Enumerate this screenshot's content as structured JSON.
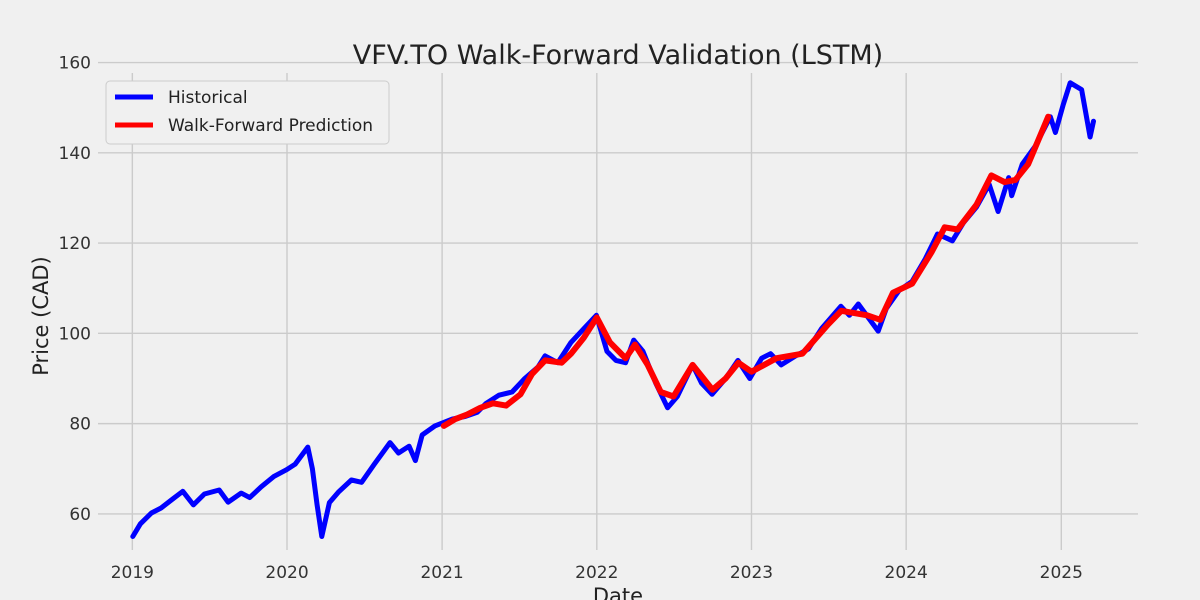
{
  "chart_data": {
    "type": "line",
    "title": "VFV.TO Walk-Forward Validation (LSTM)",
    "xlabel": "Date",
    "ylabel": "Price (CAD)",
    "xlim": [
      "2018-10-12",
      "2025-07-01"
    ],
    "ylim": [
      52,
      161
    ],
    "x_ticks": [
      "2019",
      "2020",
      "2021",
      "2022",
      "2023",
      "2024",
      "2025"
    ],
    "y_ticks": [
      60,
      80,
      100,
      120,
      140,
      160
    ],
    "grid": true,
    "legend_position": "top-left",
    "series": [
      {
        "name": "Historical",
        "color": "#0000ff",
        "points": [
          [
            "2019-01-02",
            55.0
          ],
          [
            "2019-01-20",
            57.8
          ],
          [
            "2019-02-15",
            60.2
          ],
          [
            "2019-03-10",
            61.3
          ],
          [
            "2019-04-05",
            63.2
          ],
          [
            "2019-04-30",
            65.0
          ],
          [
            "2019-05-25",
            62.0
          ],
          [
            "2019-06-20",
            64.4
          ],
          [
            "2019-07-25",
            65.3
          ],
          [
            "2019-08-15",
            62.6
          ],
          [
            "2019-09-15",
            64.6
          ],
          [
            "2019-10-05",
            63.6
          ],
          [
            "2019-11-01",
            66.0
          ],
          [
            "2019-12-01",
            68.3
          ],
          [
            "2019-12-31",
            69.8
          ],
          [
            "2020-01-20",
            71.0
          ],
          [
            "2020-02-19",
            74.8
          ],
          [
            "2020-03-01",
            70.0
          ],
          [
            "2020-03-12",
            62.0
          ],
          [
            "2020-03-23",
            55.0
          ],
          [
            "2020-04-10",
            62.5
          ],
          [
            "2020-05-01",
            64.8
          ],
          [
            "2020-06-01",
            67.5
          ],
          [
            "2020-06-25",
            67.0
          ],
          [
            "2020-07-25",
            71.0
          ],
          [
            "2020-08-31",
            75.8
          ],
          [
            "2020-09-20",
            73.5
          ],
          [
            "2020-10-15",
            75.0
          ],
          [
            "2020-10-30",
            71.8
          ],
          [
            "2020-11-15",
            77.5
          ],
          [
            "2020-12-15",
            79.5
          ],
          [
            "2021-01-25",
            81.0
          ],
          [
            "2021-02-25",
            81.6
          ],
          [
            "2021-03-25",
            82.5
          ],
          [
            "2021-04-15",
            84.5
          ],
          [
            "2021-05-15",
            86.3
          ],
          [
            "2021-06-15",
            87.0
          ],
          [
            "2021-07-15",
            90.0
          ],
          [
            "2021-08-15",
            92.5
          ],
          [
            "2021-09-01",
            95.0
          ],
          [
            "2021-10-01",
            93.5
          ],
          [
            "2021-11-01",
            98.0
          ],
          [
            "2021-12-01",
            101.0
          ],
          [
            "2021-12-31",
            104.0
          ],
          [
            "2022-01-25",
            96.0
          ],
          [
            "2022-02-15",
            94.0
          ],
          [
            "2022-03-10",
            93.5
          ],
          [
            "2022-03-29",
            98.5
          ],
          [
            "2022-04-20",
            96.0
          ],
          [
            "2022-05-20",
            89.0
          ],
          [
            "2022-06-17",
            83.5
          ],
          [
            "2022-07-10",
            86.0
          ],
          [
            "2022-08-15",
            93.0
          ],
          [
            "2022-09-05",
            89.0
          ],
          [
            "2022-09-30",
            86.5
          ],
          [
            "2022-11-01",
            90.0
          ],
          [
            "2022-11-30",
            94.0
          ],
          [
            "2022-12-28",
            90.0
          ],
          [
            "2023-01-25",
            94.5
          ],
          [
            "2023-02-15",
            95.5
          ],
          [
            "2023-03-12",
            93.0
          ],
          [
            "2023-04-15",
            95.0
          ],
          [
            "2023-05-15",
            96.5
          ],
          [
            "2023-06-15",
            101.0
          ],
          [
            "2023-07-31",
            106.0
          ],
          [
            "2023-08-20",
            104.0
          ],
          [
            "2023-09-10",
            106.5
          ],
          [
            "2023-10-27",
            100.5
          ],
          [
            "2023-11-15",
            105.5
          ],
          [
            "2023-12-15",
            109.5
          ],
          [
            "2024-01-15",
            111.5
          ],
          [
            "2024-02-15",
            116.5
          ],
          [
            "2024-03-15",
            122.0
          ],
          [
            "2024-04-19",
            120.5
          ],
          [
            "2024-05-15",
            124.5
          ],
          [
            "2024-06-15",
            128.0
          ],
          [
            "2024-07-15",
            133.0
          ],
          [
            "2024-08-05",
            127.0
          ],
          [
            "2024-08-30",
            134.5
          ],
          [
            "2024-09-06",
            130.5
          ],
          [
            "2024-10-01",
            137.5
          ],
          [
            "2024-11-01",
            141.5
          ],
          [
            "2024-12-06",
            148.0
          ],
          [
            "2024-12-18",
            144.5
          ],
          [
            "2025-01-05",
            150.5
          ],
          [
            "2025-01-22",
            155.5
          ],
          [
            "2025-02-18",
            154.0
          ],
          [
            "2025-03-10",
            143.5
          ],
          [
            "2025-03-18",
            147.0
          ]
        ]
      },
      {
        "name": "Walk-Forward Prediction",
        "color": "#ff0000",
        "points": [
          [
            "2021-01-05",
            79.5
          ],
          [
            "2021-02-01",
            81.0
          ],
          [
            "2021-03-01",
            82.0
          ],
          [
            "2021-04-01",
            83.5
          ],
          [
            "2021-05-01",
            84.5
          ],
          [
            "2021-06-01",
            84.0
          ],
          [
            "2021-07-05",
            86.5
          ],
          [
            "2021-08-01",
            91.0
          ],
          [
            "2021-09-01",
            94.0
          ],
          [
            "2021-10-10",
            93.5
          ],
          [
            "2021-11-01",
            95.5
          ],
          [
            "2021-12-01",
            99.0
          ],
          [
            "2022-01-01",
            103.5
          ],
          [
            "2022-02-01",
            98.0
          ],
          [
            "2022-03-10",
            94.5
          ],
          [
            "2022-04-01",
            97.5
          ],
          [
            "2022-05-01",
            93.0
          ],
          [
            "2022-06-01",
            87.0
          ],
          [
            "2022-07-01",
            86.0
          ],
          [
            "2022-08-15",
            93.0
          ],
          [
            "2022-10-01",
            87.5
          ],
          [
            "2022-11-01",
            90.0
          ],
          [
            "2022-12-01",
            93.5
          ],
          [
            "2023-01-01",
            91.5
          ],
          [
            "2023-03-01",
            94.5
          ],
          [
            "2023-05-01",
            95.5
          ],
          [
            "2023-07-01",
            102.0
          ],
          [
            "2023-08-01",
            105.0
          ],
          [
            "2023-10-01",
            104.0
          ],
          [
            "2023-11-01",
            103.0
          ],
          [
            "2023-12-01",
            109.0
          ],
          [
            "2024-01-15",
            111.0
          ],
          [
            "2024-03-01",
            118.0
          ],
          [
            "2024-04-01",
            123.5
          ],
          [
            "2024-05-01",
            123.0
          ],
          [
            "2024-06-15",
            128.5
          ],
          [
            "2024-07-20",
            135.0
          ],
          [
            "2024-08-20",
            133.5
          ],
          [
            "2024-09-15",
            134.0
          ],
          [
            "2024-10-15",
            137.5
          ],
          [
            "2024-12-01",
            148.0
          ]
        ]
      }
    ]
  }
}
